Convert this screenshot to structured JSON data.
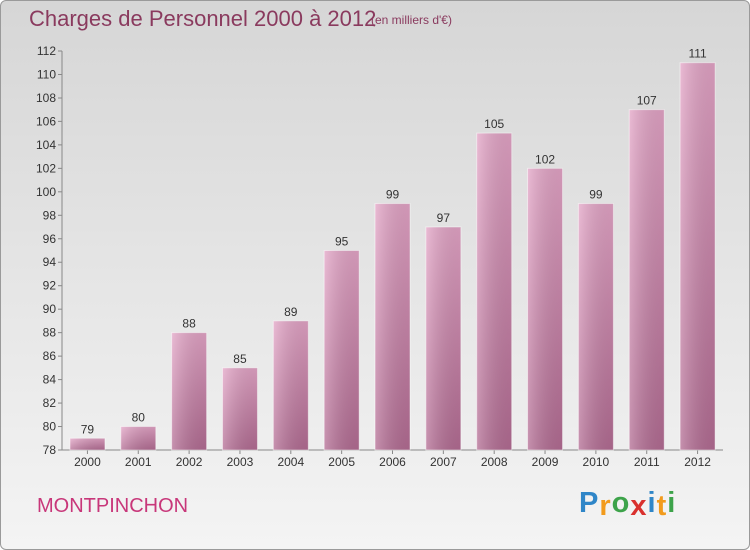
{
  "header": {
    "title": "Charges de Personnel 2000 à 2012",
    "subtitle": "(en milliers d'€)"
  },
  "footer": {
    "location": "MONTPINCHON",
    "logo": {
      "letters": [
        "P",
        "r",
        "o",
        "x",
        "i",
        "t",
        "i"
      ],
      "colors": [
        "#2f86c8",
        "#f29b1c",
        "#3da34a",
        "#d9312e",
        "#2f86c8",
        "#f29b1c",
        "#3da34a"
      ]
    }
  },
  "chart_data": {
    "type": "bar",
    "categories": [
      "2000",
      "2001",
      "2002",
      "2003",
      "2004",
      "2005",
      "2006",
      "2007",
      "2008",
      "2009",
      "2010",
      "2011",
      "2012"
    ],
    "values": [
      79,
      80,
      88,
      85,
      89,
      95,
      99,
      97,
      105,
      102,
      99,
      107,
      111
    ],
    "data_labels": [
      "79",
      "80",
      "88",
      "85",
      "89",
      "95",
      "99",
      "97",
      "105",
      "102",
      "99",
      "107",
      "111"
    ],
    "ylim": [
      78,
      112
    ],
    "yticks": [
      78,
      80,
      82,
      84,
      86,
      88,
      90,
      92,
      94,
      96,
      98,
      100,
      102,
      104,
      106,
      108,
      110,
      112
    ],
    "ytick_labels": [
      "78",
      "80",
      "82",
      "84",
      "86",
      "88",
      "90",
      "92",
      "94",
      "96",
      "98",
      "100",
      "102",
      "104",
      "106",
      "108",
      "110",
      "112"
    ],
    "grid": false,
    "bar_color": "#d48aae"
  }
}
